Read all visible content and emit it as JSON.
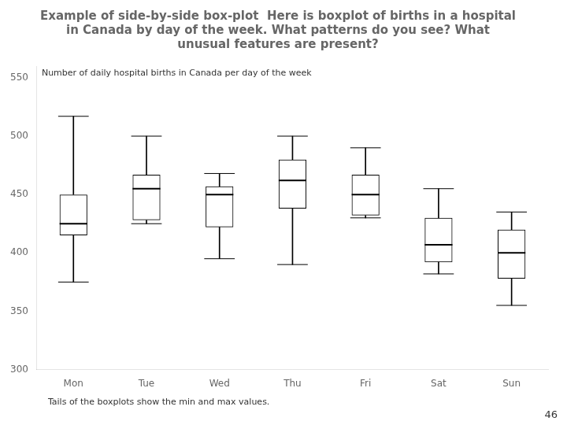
{
  "chart_data": {
    "type": "box",
    "title": [
      "Example of side-by-side box-plot  Here is boxplot of births in a hospital",
      "in Canada by day of the week. What patterns do you see? What",
      "unusual features are present?"
    ],
    "annotations": [
      "Number of daily hospital births in Canada per day of the week",
      "Tails of the boxplots show the min and max values.",
      "46"
    ],
    "categories": [
      "Mon",
      "Tue",
      "Wed",
      "Thu",
      "Fri",
      "Sat",
      "Sun"
    ],
    "values": [
      {
        "min": 375,
        "q1": 415,
        "median": 425,
        "q3": 450,
        "max": 517
      },
      {
        "min": 425,
        "q1": 428,
        "median": 455,
        "q3": 467,
        "max": 500
      },
      {
        "min": 395,
        "q1": 422,
        "median": 450,
        "q3": 457,
        "max": 468
      },
      {
        "min": 390,
        "q1": 438,
        "median": 462,
        "q3": 480,
        "max": 500
      },
      {
        "min": 430,
        "q1": 432,
        "median": 450,
        "q3": 467,
        "max": 490
      },
      {
        "min": 382,
        "q1": 392,
        "median": 407,
        "q3": 430,
        "max": 455
      },
      {
        "min": 355,
        "q1": 378,
        "median": 400,
        "q3": 420,
        "max": 435
      }
    ],
    "ylim": [
      300,
      560
    ],
    "yticks": [
      300,
      350,
      400,
      450,
      500,
      550
    ],
    "grid": false,
    "color": "black"
  }
}
